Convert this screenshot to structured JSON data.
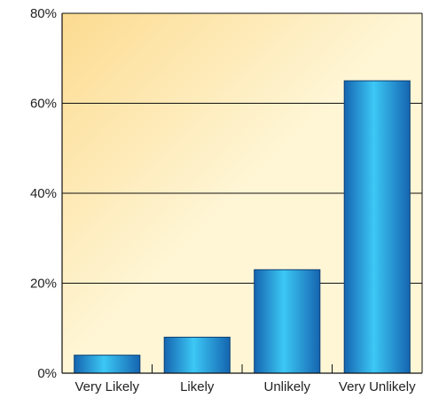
{
  "chart_data": {
    "type": "bar",
    "title": "",
    "xlabel": "",
    "ylabel": "",
    "categories": [
      "Very Likely",
      "Likely",
      "Unlikely",
      "Very Unlikely"
    ],
    "values": [
      4,
      8,
      23,
      65
    ],
    "ylim": [
      0,
      80
    ],
    "y_ticks": [
      0,
      20,
      40,
      60,
      80
    ],
    "y_tick_labels": [
      "0%",
      "20%",
      "40%",
      "60%",
      "80%"
    ],
    "grid": true,
    "legend": "none"
  },
  "colors": {
    "bar_light": "#3cc8f5",
    "bar_mid": "#1a8fd6",
    "bar_dark": "#1565b0",
    "plot_bg_light": "#fff6d6",
    "plot_bg_dark": "#fcdb90",
    "gridline": "#111111"
  }
}
